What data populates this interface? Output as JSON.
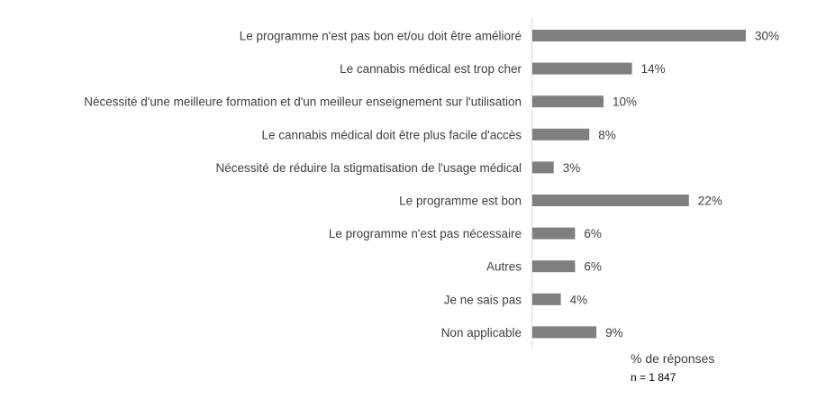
{
  "chart_data": {
    "type": "bar",
    "orientation": "horizontal",
    "categories": [
      "Le programme n'est pas bon et/ou doit être amélioré",
      "Le cannabis médical est trop cher",
      "Nécessité d'une meilleure formation et d'un meilleur enseignement sur l'utilisation",
      "Le cannabis médical doit être plus facile d'accès",
      "Nécessité de réduire la stigmatisation de l'usage médical",
      "Le programme est bon",
      "Le programme n'est pas nécessaire",
      "Autres",
      "Je ne sais pas",
      "Non applicable"
    ],
    "values": [
      30,
      14,
      10,
      8,
      3,
      22,
      6,
      6,
      4,
      9
    ],
    "value_labels": [
      "30%",
      "14%",
      "10%",
      "8%",
      "3%",
      "22%",
      "6%",
      "6%",
      "4%",
      "9%"
    ],
    "xlabel": "% de réponses",
    "note": "n = 1 847",
    "xlim": [
      0,
      30
    ],
    "grid": false,
    "bar_color": "#7f7f7f",
    "axis_color": "#d9d9d9"
  }
}
